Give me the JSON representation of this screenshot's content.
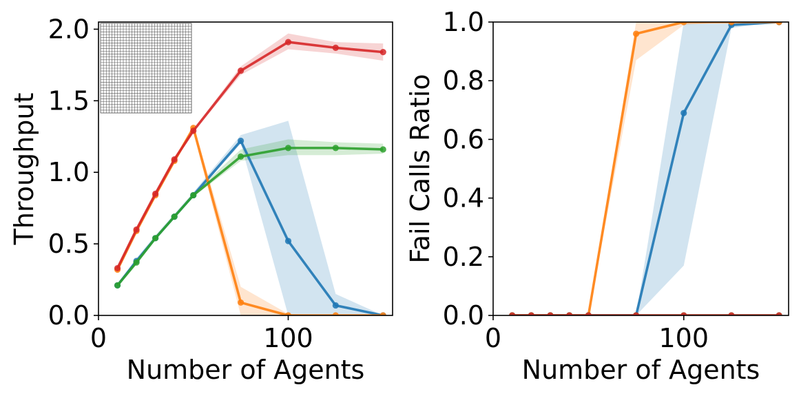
{
  "chart_data": [
    {
      "type": "line",
      "xlabel": "Number of Agents",
      "ylabel": "Throughput",
      "xlim": [
        0,
        155
      ],
      "ylim": [
        0,
        2.05
      ],
      "xticks": [
        0,
        100
      ],
      "xtick_labels": [
        "0",
        "100"
      ],
      "yticks": [
        0.0,
        0.5,
        1.0,
        1.5,
        2.0
      ],
      "ytick_labels": [
        "0.0",
        "0.5",
        "1.0",
        "1.5",
        "2.0"
      ],
      "inset": "grid-map-icon",
      "series": [
        {
          "name": "blue",
          "color": "#1f77b4",
          "x": [
            10,
            20,
            30,
            40,
            50,
            75,
            100,
            125,
            150
          ],
          "y": [
            0.21,
            0.38,
            0.54,
            0.69,
            0.84,
            1.22,
            0.52,
            0.07,
            0.0
          ],
          "lower": [
            0.2,
            0.36,
            0.53,
            0.68,
            0.83,
            1.2,
            0.0,
            0.0,
            0.0
          ],
          "upper": [
            0.22,
            0.4,
            0.56,
            0.71,
            0.86,
            1.26,
            1.36,
            0.15,
            0.0
          ]
        },
        {
          "name": "orange",
          "color": "#ff7f0e",
          "x": [
            10,
            20,
            30,
            40,
            50,
            75,
            100,
            125,
            150
          ],
          "y": [
            0.32,
            0.59,
            0.84,
            1.08,
            1.31,
            0.09,
            0.0,
            0.0,
            0.0
          ],
          "lower": [
            0.31,
            0.58,
            0.83,
            1.07,
            1.28,
            0.0,
            0.0,
            0.0,
            0.0
          ],
          "upper": [
            0.33,
            0.6,
            0.85,
            1.09,
            1.33,
            0.2,
            0.01,
            0.0,
            0.0
          ]
        },
        {
          "name": "green",
          "color": "#2ca02c",
          "x": [
            10,
            20,
            30,
            40,
            50,
            75,
            100,
            125,
            150
          ],
          "y": [
            0.21,
            0.37,
            0.54,
            0.69,
            0.84,
            1.11,
            1.17,
            1.17,
            1.16
          ],
          "lower": [
            0.2,
            0.36,
            0.53,
            0.68,
            0.83,
            1.08,
            1.12,
            1.12,
            1.13
          ],
          "upper": [
            0.22,
            0.38,
            0.55,
            0.7,
            0.85,
            1.16,
            1.23,
            1.21,
            1.2
          ]
        },
        {
          "name": "red",
          "color": "#d62728",
          "x": [
            10,
            20,
            30,
            40,
            50,
            75,
            100,
            125,
            150
          ],
          "y": [
            0.33,
            0.6,
            0.85,
            1.09,
            1.29,
            1.71,
            1.91,
            1.87,
            1.84
          ],
          "lower": [
            0.32,
            0.59,
            0.84,
            1.08,
            1.28,
            1.68,
            1.86,
            1.83,
            1.78
          ],
          "upper": [
            0.34,
            0.61,
            0.86,
            1.1,
            1.3,
            1.74,
            1.97,
            1.91,
            1.9
          ]
        }
      ]
    },
    {
      "type": "line",
      "xlabel": "Number of Agents",
      "ylabel": "Fail Calls Ratio",
      "xlim": [
        0,
        155
      ],
      "ylim": [
        0,
        1.0
      ],
      "xticks": [
        0,
        100
      ],
      "xtick_labels": [
        "0",
        "100"
      ],
      "yticks": [
        0.0,
        0.2,
        0.4,
        0.6,
        0.8,
        1.0
      ],
      "ytick_labels": [
        "0.0",
        "0.2",
        "0.4",
        "0.6",
        "0.8",
        "1.0"
      ],
      "series": [
        {
          "name": "blue",
          "color": "#1f77b4",
          "x": [
            10,
            20,
            30,
            40,
            50,
            75,
            100,
            125,
            150
          ],
          "y": [
            0.0,
            0.0,
            0.0,
            0.0,
            0.0,
            0.0,
            0.69,
            0.99,
            1.0
          ],
          "lower": [
            0.0,
            0.0,
            0.0,
            0.0,
            0.0,
            0.0,
            0.17,
            0.98,
            1.0
          ],
          "upper": [
            0.0,
            0.0,
            0.0,
            0.0,
            0.0,
            0.0,
            1.0,
            1.0,
            1.0
          ]
        },
        {
          "name": "orange",
          "color": "#ff7f0e",
          "x": [
            10,
            20,
            30,
            40,
            50,
            75,
            100,
            125,
            150
          ],
          "y": [
            0.0,
            0.0,
            0.0,
            0.0,
            0.0,
            0.96,
            1.0,
            1.0,
            1.0
          ],
          "lower": [
            0.0,
            0.0,
            0.0,
            0.0,
            0.0,
            0.87,
            0.99,
            1.0,
            1.0
          ],
          "upper": [
            0.0,
            0.0,
            0.0,
            0.0,
            0.0,
            1.0,
            1.0,
            1.0,
            1.0
          ]
        },
        {
          "name": "green",
          "color": "#2ca02c",
          "x": [
            10,
            20,
            30,
            40,
            50,
            75,
            100,
            125,
            150
          ],
          "y": [
            0.0,
            0.0,
            0.0,
            0.0,
            0.0,
            0.0,
            0.0,
            0.0,
            0.0
          ]
        },
        {
          "name": "red",
          "color": "#d62728",
          "x": [
            10,
            20,
            30,
            40,
            50,
            75,
            100,
            125,
            150
          ],
          "y": [
            0.0,
            0.0,
            0.0,
            0.0,
            0.0,
            0.0,
            0.0,
            0.0,
            0.0
          ]
        }
      ]
    }
  ]
}
